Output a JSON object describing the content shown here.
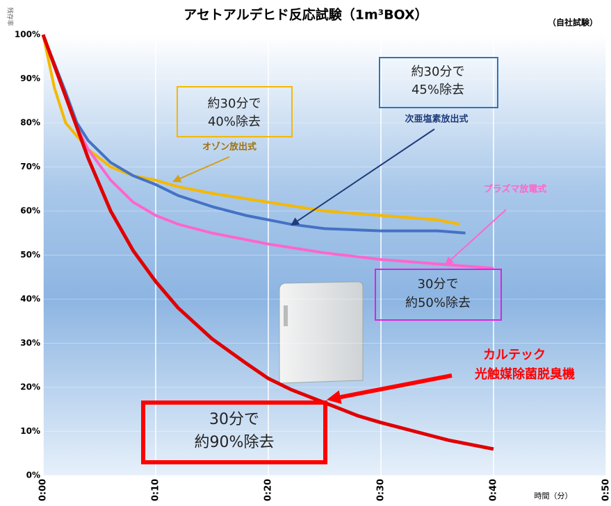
{
  "chart_data": {
    "type": "line",
    "title": "アセトアルデヒド反応試験（1m³BOX）",
    "subtitle": "（自社試験）",
    "y_label": "残存率",
    "x_label": "時間（分）",
    "xlim": [
      0,
      50
    ],
    "ylim": [
      0,
      100
    ],
    "xticks": [
      {
        "value": 0,
        "label": "0:00"
      },
      {
        "value": 10,
        "label": "0:10"
      },
      {
        "value": 20,
        "label": "0:20"
      },
      {
        "value": 30,
        "label": "0:30"
      },
      {
        "value": 40,
        "label": "0:40"
      },
      {
        "value": 50,
        "label": "0:50"
      }
    ],
    "yticks": [
      {
        "value": 0,
        "label": "0%"
      },
      {
        "value": 10,
        "label": "10%"
      },
      {
        "value": 20,
        "label": "20%"
      },
      {
        "value": 30,
        "label": "30%"
      },
      {
        "value": 40,
        "label": "40%"
      },
      {
        "value": 50,
        "label": "50%"
      },
      {
        "value": 60,
        "label": "60%"
      },
      {
        "value": 70,
        "label": "70%"
      },
      {
        "value": 80,
        "label": "80%"
      },
      {
        "value": 90,
        "label": "90%"
      },
      {
        "value": 100,
        "label": "100%"
      }
    ],
    "grid": true,
    "series": [
      {
        "color": "#f5b800",
        "x": [
          0,
          1,
          2,
          3,
          4,
          6,
          8,
          10,
          12,
          15,
          20,
          25,
          30,
          35,
          37
        ],
        "values": [
          100,
          88,
          80,
          77,
          74,
          70,
          68,
          67,
          65.5,
          64,
          62,
          60,
          59,
          58,
          57
        ]
      },
      {
        "color": "#4472c4",
        "x": [
          0,
          2,
          3,
          4,
          6,
          8,
          10,
          12,
          15,
          18,
          20,
          22,
          25,
          30,
          35,
          37.5
        ],
        "values": [
          100,
          87,
          80,
          76,
          71,
          68,
          66,
          63.5,
          61,
          59,
          58,
          57,
          56,
          55.5,
          55.5,
          55
        ]
      },
      {
        "color": "#ff66cc",
        "x": [
          0,
          2,
          3,
          4,
          6,
          8,
          10,
          12,
          15,
          18,
          20,
          25,
          30,
          35,
          40
        ],
        "values": [
          100,
          86,
          79,
          74,
          67,
          62,
          59,
          57,
          55,
          53.5,
          52.5,
          50.5,
          49,
          48,
          47
        ]
      },
      {
        "color": "#e00000",
        "x": [
          0,
          2,
          4,
          6,
          8,
          10,
          12,
          15,
          18,
          20,
          22,
          25,
          28,
          30,
          33,
          36,
          40
        ],
        "values": [
          100,
          86,
          72,
          60,
          51,
          44,
          38,
          31,
          25.5,
          22,
          19.5,
          16.5,
          13.5,
          12,
          10,
          8,
          6
        ]
      }
    ],
    "annotations": [
      {
        "lines": [
          "約30分で",
          "40%除去"
        ],
        "color": "#f5b800"
      },
      {
        "lines": [
          "オゾン放出式"
        ],
        "color": "#a0700a"
      },
      {
        "lines": [
          "約30分で",
          "45%除去"
        ],
        "color": "#2e75b6"
      },
      {
        "lines": [
          "次亜塩素放出式"
        ],
        "color": "#1f3b7a"
      },
      {
        "lines": [
          "プラズマ放電式"
        ],
        "color": "#ff66cc"
      },
      {
        "lines": [
          "30分で",
          "約50%除去"
        ],
        "color": "#e020e0"
      },
      {
        "lines": [
          "カルテック",
          "光触媒除菌脱臭機"
        ],
        "color": "#ff0000"
      },
      {
        "lines": [
          "30分で",
          "約90%除去"
        ],
        "color": "#ff0000"
      }
    ]
  }
}
